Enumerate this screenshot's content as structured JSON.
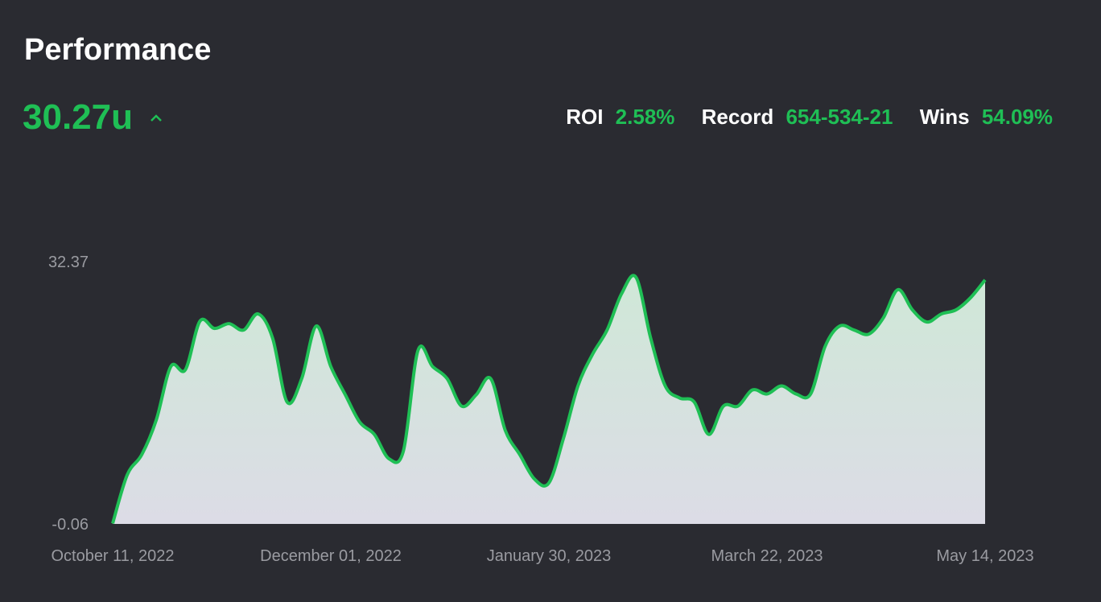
{
  "header": {
    "title": "Performance",
    "total": "30.27u",
    "stats": [
      {
        "label": "ROI",
        "value": "2.58%"
      },
      {
        "label": "Record",
        "value": "654-534-21"
      },
      {
        "label": "Wins",
        "value": "54.09%"
      }
    ]
  },
  "chart_data": {
    "type": "area",
    "color": "#1fbf55",
    "categories": [
      "October 11, 2022",
      null,
      null,
      null,
      null,
      null,
      null,
      null,
      null,
      null,
      null,
      null,
      null,
      null,
      null,
      "December 01, 2022",
      null,
      null,
      null,
      null,
      null,
      null,
      null,
      null,
      null,
      null,
      null,
      null,
      null,
      null,
      "January 30, 2023",
      null,
      null,
      null,
      null,
      null,
      null,
      null,
      null,
      null,
      null,
      null,
      null,
      null,
      null,
      "March 22, 2023",
      null,
      null,
      null,
      null,
      null,
      null,
      null,
      null,
      null,
      null,
      null,
      null,
      null,
      null,
      "May 14, 2023"
    ],
    "values": [
      0,
      6.0,
      8.5,
      12.8,
      19.4,
      19,
      25,
      24.1,
      24.7,
      23.9,
      25.9,
      22.9,
      15,
      17.9,
      24.4,
      19.4,
      15.9,
      12.5,
      11,
      8,
      9,
      21.4,
      19.4,
      17.9,
      14.5,
      15.9,
      17.9,
      11.5,
      8.5,
      5.5,
      5,
      10.5,
      17,
      20.9,
      23.9,
      28.4,
      30.4,
      22.9,
      17,
      15.5,
      15,
      11,
      14.5,
      14.5,
      16.5,
      16,
      17,
      16,
      16,
      21.9,
      24.4,
      23.9,
      23.4,
      25.4,
      28.9,
      26.4,
      24.9,
      25.9,
      26.4,
      27.9,
      30.1
    ],
    "ylim": [
      -0.06,
      32.37
    ],
    "yticks": [
      -0.06,
      32.37
    ],
    "grid": false
  }
}
